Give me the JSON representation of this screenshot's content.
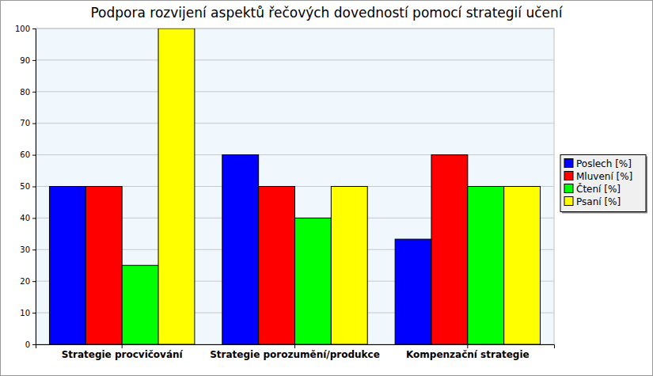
{
  "chart_data": {
    "type": "bar",
    "title": "Podpora rozvijení aspektů řečových dovedností pomocí strategií učení",
    "categories": [
      "Strategie procvičování",
      "Strategie porozumění/produkce",
      "Kompenzační strategie"
    ],
    "series": [
      {
        "name": "Poslech [%]",
        "color": "#0000ff",
        "values": [
          50,
          60,
          33.3
        ]
      },
      {
        "name": "Mluvení [%]",
        "color": "#ff0000",
        "values": [
          50,
          50,
          60
        ]
      },
      {
        "name": "Čtení [%]",
        "color": "#00ff00",
        "values": [
          25,
          40,
          50
        ]
      },
      {
        "name": "Psaní [%]",
        "color": "#ffff00",
        "values": [
          100,
          50,
          50
        ]
      }
    ],
    "ylim": [
      0,
      100
    ],
    "yticks": [
      0,
      10,
      20,
      30,
      40,
      50,
      60,
      70,
      80,
      90,
      100
    ],
    "grid": true,
    "legend": "right"
  }
}
